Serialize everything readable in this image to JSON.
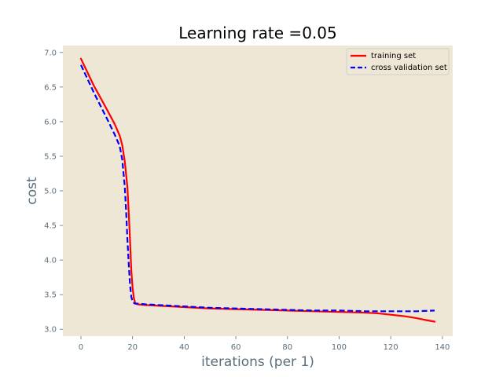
{
  "chart_data": {
    "type": "line",
    "title": "Learning rate =0.05",
    "xlabel": "iterations (per 1)",
    "ylabel": "cost",
    "xlim": [
      -7,
      144
    ],
    "ylim": [
      2.9,
      7.1
    ],
    "xticks": [
      0,
      20,
      40,
      60,
      80,
      100,
      120,
      140
    ],
    "yticks": [
      3.0,
      3.5,
      4.0,
      4.5,
      5.0,
      5.5,
      6.0,
      6.5,
      7.0
    ],
    "xtick_labels": [
      "0",
      "20",
      "40",
      "60",
      "80",
      "100",
      "120",
      "140"
    ],
    "ytick_labels": [
      "3.0",
      "3.5",
      "4.0",
      "4.5",
      "5.0",
      "5.5",
      "6.0",
      "6.5",
      "7.0"
    ],
    "grid": false,
    "legend_position": "top-right",
    "plot_background": "#efe7d5",
    "series": [
      {
        "name": "training set",
        "color": "#ff0000",
        "style": "solid",
        "x": [
          0,
          5,
          10,
          13,
          15,
          16,
          17,
          18,
          18.5,
          19,
          19.5,
          20,
          20.5,
          21,
          22,
          25,
          30,
          40,
          50,
          60,
          70,
          80,
          90,
          100,
          110,
          115,
          120,
          125,
          130,
          134,
          137
        ],
        "y": [
          6.91,
          6.52,
          6.18,
          5.97,
          5.8,
          5.66,
          5.42,
          5.05,
          4.7,
          4.3,
          3.85,
          3.6,
          3.45,
          3.38,
          3.36,
          3.35,
          3.34,
          3.32,
          3.3,
          3.29,
          3.28,
          3.27,
          3.26,
          3.25,
          3.24,
          3.23,
          3.21,
          3.19,
          3.16,
          3.13,
          3.11
        ]
      },
      {
        "name": "cross validation set",
        "color": "#0000ff",
        "style": "dashed",
        "x": [
          0,
          5,
          10,
          13,
          15,
          16,
          17,
          17.5,
          18,
          18.5,
          19,
          19.5,
          20,
          20.5,
          21,
          22,
          25,
          30,
          40,
          50,
          60,
          70,
          80,
          90,
          100,
          110,
          120,
          130,
          137
        ],
        "y": [
          6.82,
          6.42,
          6.05,
          5.82,
          5.65,
          5.45,
          5.05,
          4.7,
          4.3,
          3.95,
          3.65,
          3.47,
          3.4,
          3.38,
          3.37,
          3.37,
          3.36,
          3.35,
          3.33,
          3.31,
          3.3,
          3.29,
          3.28,
          3.27,
          3.27,
          3.26,
          3.26,
          3.26,
          3.27
        ]
      }
    ]
  }
}
